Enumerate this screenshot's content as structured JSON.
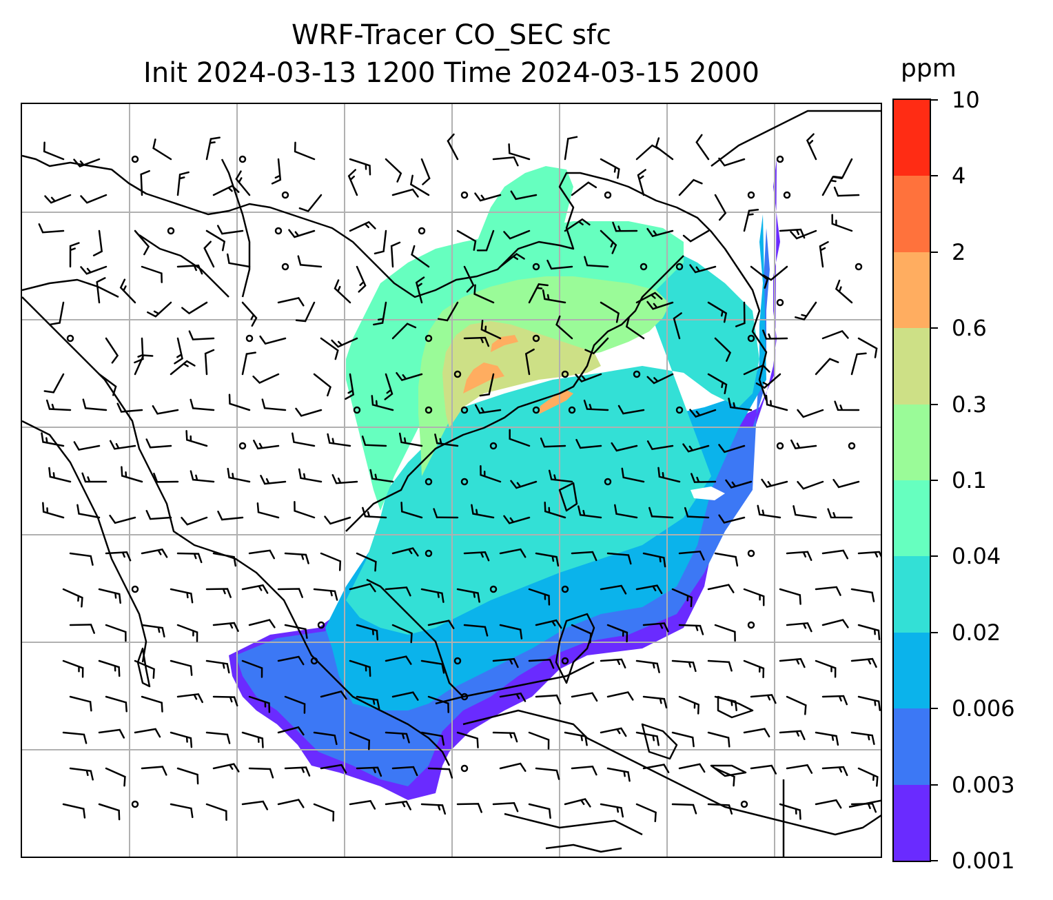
{
  "title": {
    "line1": "WRF-Tracer CO_SEC sfc",
    "line2": "Init 2024-03-13 1200 Time 2024-03-15 2000"
  },
  "colorbar": {
    "unit": "ppm",
    "levels": [
      "0.001",
      "0.003",
      "0.006",
      "0.02",
      "0.04",
      "0.1",
      "0.3",
      "0.6",
      "2",
      "4",
      "10"
    ],
    "colors": [
      "#6a2bff",
      "#3c78f5",
      "#0bb3eb",
      "#33e0d6",
      "#66ffbf",
      "#9afb98",
      "#cde086",
      "#ffad60",
      "#ff723c",
      "#ff2c14"
    ]
  },
  "map": {
    "field": "CO_SEC",
    "coastline_color": "#000000",
    "gridline_color": "#b0b0b0",
    "barb_color": "#000000"
  }
}
